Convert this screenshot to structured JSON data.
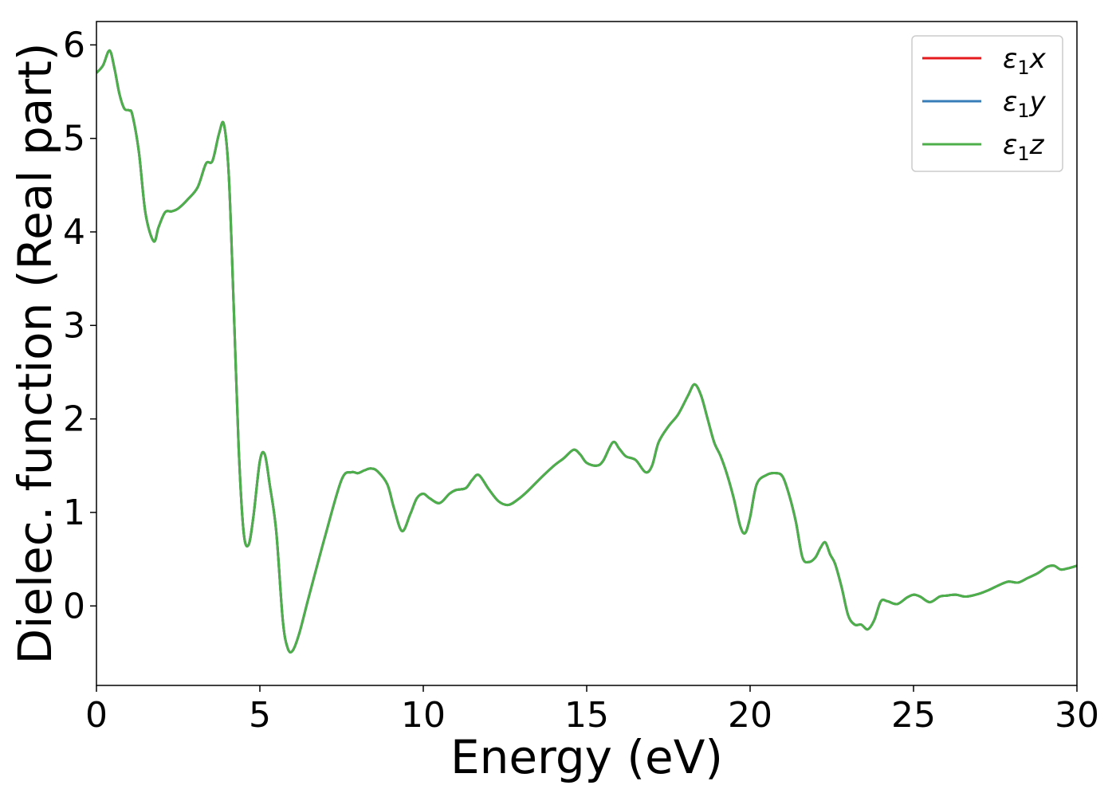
{
  "chart_data": {
    "type": "line",
    "title": "",
    "xlabel": "Energy (eV)",
    "ylabel": "Dielec. function (Real part)",
    "xlim": [
      0,
      30
    ],
    "ylim": [
      -0.85,
      6.25
    ],
    "xticks": [
      0,
      5,
      10,
      15,
      20,
      25,
      30
    ],
    "yticks": [
      0,
      1,
      2,
      3,
      4,
      5,
      6
    ],
    "grid": false,
    "legend_position": "top-right",
    "series": [
      {
        "name": "ε₁x",
        "legend_label": {
          "main": "ε",
          "sub": "1",
          "suffix": "x"
        },
        "color": "#e41a1c",
        "values": "same as ε₁z"
      },
      {
        "name": "ε₁y",
        "legend_label": {
          "main": "ε",
          "sub": "1",
          "suffix": "y"
        },
        "color": "#377eb8",
        "values": "same as ε₁z"
      },
      {
        "name": "ε₁z",
        "legend_label": {
          "main": "ε",
          "sub": "1",
          "suffix": "z"
        },
        "color": "#4daf4a"
      }
    ],
    "x": [
      0,
      0.2,
      0.4,
      0.55,
      0.7,
      0.85,
      1.0,
      1.1,
      1.3,
      1.5,
      1.75,
      1.9,
      2.1,
      2.3,
      2.5,
      2.8,
      3.1,
      3.35,
      3.55,
      3.75,
      3.9,
      4.05,
      4.2,
      4.35,
      4.5,
      4.65,
      4.8,
      5.0,
      5.15,
      5.3,
      5.5,
      5.7,
      5.85,
      6.0,
      6.2,
      6.5,
      7.0,
      7.5,
      7.8,
      8.0,
      8.2,
      8.4,
      8.6,
      8.9,
      9.1,
      9.35,
      9.6,
      9.8,
      10.0,
      10.2,
      10.5,
      10.8,
      11.0,
      11.3,
      11.5,
      11.7,
      12.0,
      12.3,
      12.6,
      12.9,
      13.2,
      13.6,
      14.0,
      14.3,
      14.6,
      14.8,
      15.0,
      15.3,
      15.5,
      15.8,
      16.0,
      16.2,
      16.5,
      16.8,
      17.0,
      17.2,
      17.5,
      17.8,
      18.1,
      18.3,
      18.5,
      18.7,
      18.9,
      19.1,
      19.3,
      19.5,
      19.7,
      19.85,
      20.0,
      20.2,
      20.5,
      20.8,
      21.0,
      21.2,
      21.4,
      21.6,
      21.8,
      22.0,
      22.15,
      22.3,
      22.45,
      22.6,
      22.8,
      23.0,
      23.2,
      23.4,
      23.6,
      23.8,
      24.0,
      24.2,
      24.5,
      24.8,
      25.0,
      25.2,
      25.5,
      25.8,
      26.0,
      26.3,
      26.6,
      27.0,
      27.3,
      27.6,
      27.9,
      28.2,
      28.5,
      28.8,
      29.1,
      29.3,
      29.5,
      29.7,
      30.0
    ],
    "values": [
      5.7,
      5.78,
      5.94,
      5.75,
      5.48,
      5.32,
      5.3,
      5.25,
      4.85,
      4.2,
      3.9,
      4.05,
      4.21,
      4.22,
      4.25,
      4.35,
      4.48,
      4.73,
      4.76,
      5.05,
      5.15,
      4.6,
      3.2,
      1.7,
      0.8,
      0.65,
      0.95,
      1.55,
      1.62,
      1.3,
      0.8,
      -0.15,
      -0.45,
      -0.48,
      -0.3,
      0.1,
      0.75,
      1.35,
      1.43,
      1.42,
      1.45,
      1.47,
      1.44,
      1.3,
      1.05,
      0.8,
      0.98,
      1.15,
      1.2,
      1.15,
      1.1,
      1.2,
      1.24,
      1.26,
      1.35,
      1.4,
      1.25,
      1.12,
      1.08,
      1.14,
      1.23,
      1.37,
      1.5,
      1.58,
      1.67,
      1.62,
      1.53,
      1.5,
      1.55,
      1.75,
      1.68,
      1.6,
      1.56,
      1.43,
      1.5,
      1.75,
      1.92,
      2.05,
      2.25,
      2.37,
      2.25,
      2.0,
      1.75,
      1.6,
      1.4,
      1.15,
      0.85,
      0.78,
      0.95,
      1.3,
      1.4,
      1.42,
      1.38,
      1.18,
      0.9,
      0.52,
      0.47,
      0.52,
      0.62,
      0.68,
      0.55,
      0.45,
      0.2,
      -0.1,
      -0.2,
      -0.2,
      -0.25,
      -0.15,
      0.05,
      0.05,
      0.02,
      0.09,
      0.12,
      0.1,
      0.04,
      0.1,
      0.11,
      0.12,
      0.1,
      0.13,
      0.17,
      0.22,
      0.26,
      0.25,
      0.3,
      0.35,
      0.42,
      0.43,
      0.39,
      0.4,
      0.43
    ]
  }
}
